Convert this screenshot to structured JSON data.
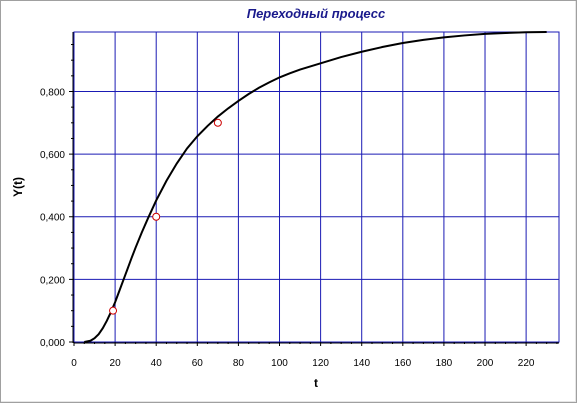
{
  "chart_data": {
    "type": "line",
    "title": "Переходный процесс",
    "xlabel": "t",
    "ylabel": "Y(t)",
    "xlim": [
      0,
      236
    ],
    "ylim": [
      0,
      0.99
    ],
    "x_ticks": [
      0,
      20,
      40,
      60,
      80,
      100,
      120,
      140,
      160,
      180,
      200,
      220
    ],
    "x_tick_labels": [
      "0",
      "20",
      "40",
      "60",
      "80",
      "100",
      "120",
      "140",
      "160",
      "180",
      "200",
      "220"
    ],
    "y_ticks": [
      0,
      0.2,
      0.4,
      0.6,
      0.8
    ],
    "y_tick_labels": [
      "0,000",
      "0,200",
      "0,400",
      "0,600",
      "0,800"
    ],
    "grid": true,
    "legend": "none",
    "series": [
      {
        "x": [
          5,
          8,
          10,
          12,
          14,
          16,
          18,
          20,
          22,
          25,
          28,
          30,
          33,
          36,
          40,
          45,
          50,
          55,
          60,
          65,
          70,
          75,
          80,
          85,
          90,
          95,
          100,
          105,
          110,
          115,
          120,
          130,
          140,
          150,
          160,
          170,
          180,
          190,
          200,
          210,
          220,
          230
        ],
        "y": [
          0.0,
          0.004,
          0.012,
          0.025,
          0.044,
          0.068,
          0.096,
          0.127,
          0.162,
          0.215,
          0.268,
          0.302,
          0.35,
          0.395,
          0.452,
          0.515,
          0.57,
          0.618,
          0.657,
          0.69,
          0.72,
          0.746,
          0.77,
          0.792,
          0.812,
          0.829,
          0.845,
          0.858,
          0.87,
          0.88,
          0.89,
          0.91,
          0.927,
          0.942,
          0.955,
          0.965,
          0.973,
          0.979,
          0.984,
          0.987,
          0.989,
          0.99
        ]
      }
    ],
    "markers": [
      {
        "x": 19,
        "y": 0.1
      },
      {
        "x": 40,
        "y": 0.4
      },
      {
        "x": 70,
        "y": 0.7
      }
    ],
    "colors": {
      "title": "#1a1a8c",
      "grid": "#1a1ab4",
      "line": "#000000",
      "marker_stroke": "#cc0000",
      "marker_fill": "#ffffff"
    }
  }
}
